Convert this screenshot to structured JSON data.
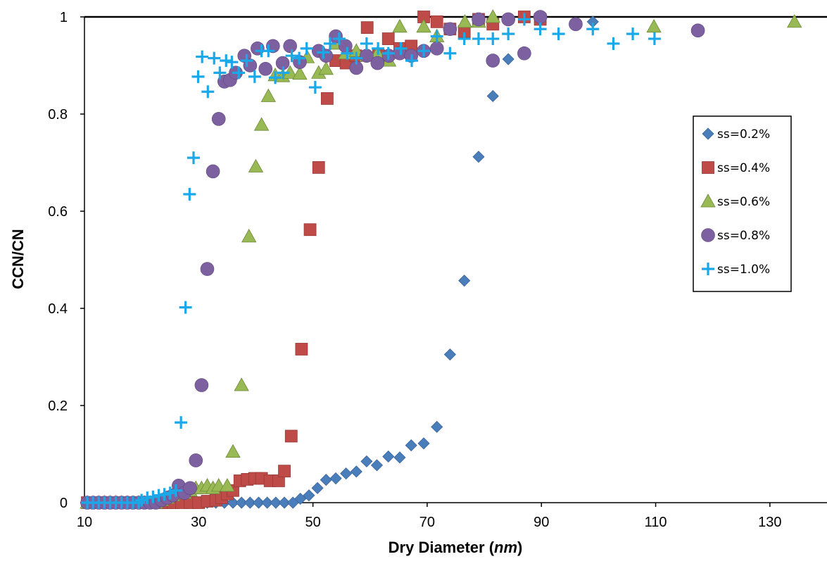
{
  "chart_data": {
    "type": "scatter",
    "xlabel": "Dry Diameter (nm)",
    "xlabel_main": "Dry Diameter (",
    "xlabel_unit": "nm",
    "xlabel_close": ")",
    "ylabel": "CCN/CN",
    "xlim": [
      10,
      140
    ],
    "ylim": [
      0,
      1
    ],
    "x_ticks": [
      10,
      30,
      50,
      70,
      90,
      110,
      130
    ],
    "y_ticks": [
      0,
      0.2,
      0.4,
      0.6,
      0.8,
      1
    ],
    "y_tick_labels": [
      "0",
      "0.2",
      "0.4",
      "0.6",
      "0.8",
      "1"
    ],
    "grid": false,
    "legend_position": "right",
    "series": [
      {
        "name": "ss=0.2%",
        "marker": "diamond",
        "color": "#4a7ebb",
        "points": [
          [
            10.5,
            0
          ],
          [
            11.5,
            0
          ],
          [
            12.5,
            0
          ],
          [
            13.5,
            0
          ],
          [
            14.5,
            0
          ],
          [
            15.5,
            0
          ],
          [
            16.5,
            0
          ],
          [
            17.5,
            0
          ],
          [
            18.5,
            0
          ],
          [
            19.5,
            0
          ],
          [
            20.5,
            0
          ],
          [
            21.5,
            0
          ],
          [
            22.5,
            0
          ],
          [
            23.5,
            0
          ],
          [
            24.5,
            0
          ],
          [
            25.5,
            0
          ],
          [
            27,
            0
          ],
          [
            28.5,
            0
          ],
          [
            30,
            0
          ],
          [
            31.5,
            0
          ],
          [
            33,
            0
          ],
          [
            34.5,
            0
          ],
          [
            36,
            0
          ],
          [
            37.5,
            0
          ],
          [
            39,
            0
          ],
          [
            40.5,
            0
          ],
          [
            42,
            0
          ],
          [
            43.5,
            0
          ],
          [
            45,
            0
          ],
          [
            46.5,
            0
          ],
          [
            47.8,
            0.008
          ],
          [
            49.3,
            0.015
          ],
          [
            50.8,
            0.03
          ],
          [
            52.3,
            0.047
          ],
          [
            54,
            0.05
          ],
          [
            55.8,
            0.06
          ],
          [
            57.6,
            0.064
          ],
          [
            59.4,
            0.085
          ],
          [
            61.2,
            0.077
          ],
          [
            63.2,
            0.095
          ],
          [
            65.2,
            0.093
          ],
          [
            67.2,
            0.118
          ],
          [
            69.4,
            0.122
          ],
          [
            71.7,
            0.156
          ],
          [
            74,
            0.305
          ],
          [
            76.5,
            0.457
          ],
          [
            79,
            0.712
          ],
          [
            81.5,
            0.837
          ],
          [
            84.2,
            0.913
          ],
          [
            99,
            0.99
          ]
        ]
      },
      {
        "name": "ss=0.4%",
        "marker": "square",
        "color": "#be4b48",
        "points": [
          [
            10.5,
            0
          ],
          [
            11.5,
            0
          ],
          [
            12.5,
            0
          ],
          [
            13.5,
            0
          ],
          [
            14.5,
            0
          ],
          [
            15.5,
            0
          ],
          [
            16.5,
            0
          ],
          [
            17.5,
            0
          ],
          [
            18.5,
            0
          ],
          [
            19.5,
            0
          ],
          [
            20.5,
            0
          ],
          [
            21.5,
            0
          ],
          [
            22.5,
            0
          ],
          [
            23.5,
            0
          ],
          [
            24.5,
            0
          ],
          [
            25.5,
            0
          ],
          [
            27,
            0
          ],
          [
            28.5,
            0
          ],
          [
            30,
            0
          ],
          [
            31.5,
            0.003
          ],
          [
            33,
            0.005
          ],
          [
            34,
            0.01
          ],
          [
            35,
            0.018
          ],
          [
            36,
            0.025
          ],
          [
            37.2,
            0.045
          ],
          [
            38.5,
            0.048
          ],
          [
            39.8,
            0.05
          ],
          [
            41,
            0.05
          ],
          [
            42.5,
            0.045
          ],
          [
            44,
            0.045
          ],
          [
            45,
            0.065
          ],
          [
            46.2,
            0.137
          ],
          [
            48,
            0.316
          ],
          [
            49.5,
            0.562
          ],
          [
            51,
            0.69
          ],
          [
            52.5,
            0.832
          ],
          [
            54,
            0.91
          ],
          [
            55.8,
            0.905
          ],
          [
            57.5,
            0.92
          ],
          [
            59.5,
            0.978
          ],
          [
            61.5,
            0.92
          ],
          [
            63.2,
            0.955
          ],
          [
            65.2,
            0.935
          ],
          [
            67.2,
            0.94
          ],
          [
            69.4,
            1
          ],
          [
            71.7,
            0.99
          ],
          [
            74,
            0.975
          ],
          [
            76.5,
            0.97
          ],
          [
            79,
            0.995
          ],
          [
            81.5,
            0.985
          ],
          [
            87,
            1
          ],
          [
            89.8,
            0.995
          ]
        ]
      },
      {
        "name": "ss=0.6%",
        "marker": "triangle",
        "color": "#98b954",
        "points": [
          [
            10.5,
            0
          ],
          [
            11.5,
            0
          ],
          [
            12.5,
            0
          ],
          [
            13.5,
            0
          ],
          [
            14.5,
            0
          ],
          [
            15.5,
            0
          ],
          [
            16.5,
            0
          ],
          [
            17.5,
            0
          ],
          [
            18.5,
            0
          ],
          [
            19.5,
            0
          ],
          [
            20.5,
            0
          ],
          [
            21.5,
            0
          ],
          [
            22.5,
            0
          ],
          [
            23.5,
            0.005
          ],
          [
            24.5,
            0.01
          ],
          [
            25.5,
            0.015
          ],
          [
            26.5,
            0.02
          ],
          [
            27.5,
            0.02
          ],
          [
            28.5,
            0.025
          ],
          [
            29.5,
            0.03
          ],
          [
            30.5,
            0.03
          ],
          [
            31.5,
            0.035
          ],
          [
            32.5,
            0.03
          ],
          [
            33.5,
            0.035
          ],
          [
            35,
            0.035
          ],
          [
            36,
            0.105
          ],
          [
            37.5,
            0.242
          ],
          [
            38.8,
            0.548
          ],
          [
            40,
            0.692
          ],
          [
            41,
            0.778
          ],
          [
            42.2,
            0.837
          ],
          [
            43.4,
            0.88
          ],
          [
            44.7,
            0.878
          ],
          [
            46,
            0.885
          ],
          [
            47.7,
            0.883
          ],
          [
            49,
            0.917
          ],
          [
            51,
            0.885
          ],
          [
            52.3,
            0.893
          ],
          [
            54,
            0.945
          ],
          [
            55.7,
            0.925
          ],
          [
            57.6,
            0.93
          ],
          [
            59.4,
            0.92
          ],
          [
            61.3,
            0.925
          ],
          [
            63.3,
            0.91
          ],
          [
            65.2,
            0.98
          ],
          [
            69.4,
            0.98
          ],
          [
            71.7,
            0.96
          ],
          [
            76.6,
            0.99
          ],
          [
            79,
            0.99
          ],
          [
            81.5,
            1
          ],
          [
            109.7,
            0.98
          ],
          [
            134.3,
            0.99
          ]
        ]
      },
      {
        "name": "ss=0.8%",
        "marker": "circle",
        "color": "#7d60a0",
        "points": [
          [
            10.5,
            0
          ],
          [
            11.5,
            0
          ],
          [
            12.5,
            0
          ],
          [
            13.5,
            0
          ],
          [
            14.5,
            0
          ],
          [
            15.5,
            0
          ],
          [
            16.5,
            0
          ],
          [
            17.5,
            0
          ],
          [
            18.5,
            0
          ],
          [
            19.5,
            0
          ],
          [
            20.5,
            0
          ],
          [
            21.5,
            0
          ],
          [
            22.5,
            0
          ],
          [
            23.5,
            0.005
          ],
          [
            24.5,
            0.01
          ],
          [
            25.5,
            0.015
          ],
          [
            26.5,
            0.035
          ],
          [
            27.5,
            0.02
          ],
          [
            28.5,
            0.03
          ],
          [
            29.5,
            0.087
          ],
          [
            30.5,
            0.242
          ],
          [
            31.5,
            0.481
          ],
          [
            32.5,
            0.682
          ],
          [
            33.5,
            0.79
          ],
          [
            34.5,
            0.867
          ],
          [
            35.5,
            0.87
          ],
          [
            36.5,
            0.885
          ],
          [
            38,
            0.92
          ],
          [
            39,
            0.9
          ],
          [
            40.3,
            0.935
          ],
          [
            41.7,
            0.893
          ],
          [
            43,
            0.94
          ],
          [
            44.7,
            0.905
          ],
          [
            46,
            0.94
          ],
          [
            47.7,
            0.907
          ],
          [
            51,
            0.93
          ],
          [
            52.3,
            0.92
          ],
          [
            54,
            0.96
          ],
          [
            55.7,
            0.94
          ],
          [
            57.6,
            0.895
          ],
          [
            59.4,
            0.92
          ],
          [
            61.3,
            0.905
          ],
          [
            63.3,
            0.92
          ],
          [
            65.2,
            0.925
          ],
          [
            67.2,
            0.92
          ],
          [
            69.4,
            0.93
          ],
          [
            71.7,
            0.935
          ],
          [
            74,
            0.975
          ],
          [
            79,
            0.995
          ],
          [
            81.5,
            0.91
          ],
          [
            84.2,
            0.995
          ],
          [
            87,
            0.925
          ],
          [
            89.8,
            1
          ],
          [
            96,
            0.985
          ],
          [
            117.4,
            0.972
          ]
        ]
      },
      {
        "name": "ss=1.0%",
        "marker": "plus",
        "color": "#1ba8e8",
        "points": [
          [
            10.5,
            0
          ],
          [
            11.5,
            0
          ],
          [
            12.5,
            0
          ],
          [
            13.5,
            0
          ],
          [
            14.5,
            0
          ],
          [
            15.5,
            0
          ],
          [
            16.5,
            0
          ],
          [
            17.5,
            0
          ],
          [
            18.5,
            0
          ],
          [
            19.5,
            0
          ],
          [
            20,
            0.005
          ],
          [
            21,
            0.01
          ],
          [
            22,
            0.012
          ],
          [
            23,
            0.015
          ],
          [
            24,
            0.017
          ],
          [
            25,
            0.02
          ],
          [
            26,
            0.025
          ],
          [
            26.9,
            0.165
          ],
          [
            27.7,
            0.402
          ],
          [
            28.4,
            0.635
          ],
          [
            29.1,
            0.71
          ],
          [
            29.9,
            0.877
          ],
          [
            30.6,
            0.918
          ],
          [
            31.6,
            0.846
          ],
          [
            32.7,
            0.915
          ],
          [
            33.7,
            0.885
          ],
          [
            34.8,
            0.91
          ],
          [
            35.8,
            0.907
          ],
          [
            37,
            0.885
          ],
          [
            38.4,
            0.91
          ],
          [
            39.8,
            0.877
          ],
          [
            41,
            0.93
          ],
          [
            42.2,
            0.93
          ],
          [
            43.4,
            0.875
          ],
          [
            44.8,
            0.885
          ],
          [
            46.3,
            0.92
          ],
          [
            47.6,
            0.915
          ],
          [
            48.9,
            0.935
          ],
          [
            50.4,
            0.855
          ],
          [
            51.8,
            0.927
          ],
          [
            53,
            0.945
          ],
          [
            54.6,
            0.955
          ],
          [
            56,
            0.925
          ],
          [
            57.6,
            0.915
          ],
          [
            59.4,
            0.945
          ],
          [
            61.4,
            0.935
          ],
          [
            63.2,
            0.925
          ],
          [
            65.4,
            0.935
          ],
          [
            67.3,
            0.91
          ],
          [
            69.4,
            0.93
          ],
          [
            71.7,
            0.96
          ],
          [
            74,
            0.925
          ],
          [
            76.5,
            0.955
          ],
          [
            79,
            0.955
          ],
          [
            81.5,
            0.955
          ],
          [
            84.2,
            0.965
          ],
          [
            87,
            0.995
          ],
          [
            89.8,
            0.975
          ],
          [
            93,
            0.965
          ],
          [
            99,
            0.975
          ],
          [
            102.6,
            0.945
          ],
          [
            106,
            0.965
          ],
          [
            109.8,
            0.955
          ]
        ]
      }
    ]
  }
}
